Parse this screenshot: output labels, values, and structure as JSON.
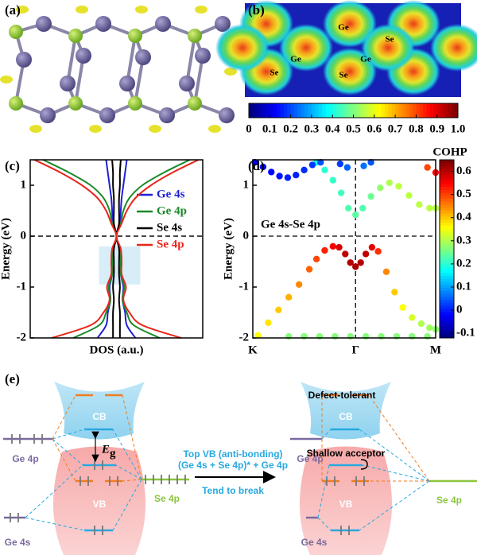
{
  "panel_labels": [
    "(a)",
    "(b)",
    "(c)",
    "(d)",
    "(e)"
  ],
  "panel_b": {
    "atom_labels": [
      "Se",
      "Ge",
      "Ge",
      "Ge",
      "Se",
      "Se"
    ],
    "colorbar": {
      "lim": [
        0,
        1
      ],
      "ticks": [
        0,
        0.1,
        0.2,
        0.3,
        0.4,
        0.5,
        0.6,
        0.7,
        0.8,
        0.9,
        {
          "value": 1,
          "label": "1.0"
        }
      ]
    }
  },
  "chart_data": [
    {
      "type": "dos",
      "xlabel": "DOS (a.u.)",
      "ylabel": "Energy (eV)",
      "ylim": [
        -2,
        1.5
      ],
      "yticks": [
        -2,
        -1,
        0,
        1
      ],
      "xlim": [
        0,
        1
      ],
      "hline": 0,
      "shade": [
        -0.95,
        -0.2
      ],
      "y": [
        -2,
        -1.75,
        -1.5,
        -1.25,
        -1,
        -0.75,
        -0.5,
        -0.25,
        0,
        0.25,
        0.5,
        0.75,
        1,
        1.25,
        1.5
      ],
      "series": [
        {
          "name": "Ge 4s",
          "color": "#1f1fd6",
          "values": [
            0.22,
            0.12,
            0.1,
            0.07,
            0.08,
            0.05,
            0.05,
            0.04,
            0.0,
            0.04,
            0.05,
            0.06,
            0.08,
            0.1,
            0.12
          ]
        },
        {
          "name": "Ge 4p",
          "color": "#1a8a2a",
          "values": [
            0.5,
            0.2,
            0.12,
            0.07,
            0.09,
            0.05,
            0.05,
            0.04,
            0.0,
            0.05,
            0.08,
            0.15,
            0.3,
            0.55,
            0.85
          ]
        },
        {
          "name": "Se 4s",
          "color": "#000000",
          "values": [
            0.04,
            0.04,
            0.04,
            0.03,
            0.04,
            0.03,
            0.03,
            0.03,
            0.0,
            0.03,
            0.03,
            0.03,
            0.04,
            0.04,
            0.05
          ]
        },
        {
          "name": "Se 4p",
          "color": "#e8261a",
          "values": [
            0.75,
            0.3,
            0.15,
            0.08,
            0.11,
            0.06,
            0.06,
            0.05,
            0.0,
            0.06,
            0.12,
            0.22,
            0.4,
            0.65,
            0.95
          ]
        }
      ]
    },
    {
      "type": "bands",
      "ylabel": "Energy (eV)",
      "annotation": "Ge 4s-Se 4p",
      "ylim": [
        -2,
        1.5
      ],
      "yticks": [
        -2,
        -1,
        0,
        1
      ],
      "xlim": [
        0,
        1.78
      ],
      "xticks": [
        {
          "value": 0,
          "label": "K"
        },
        {
          "value": 1,
          "label": "Γ"
        },
        {
          "value": 1.78,
          "label": "M"
        }
      ],
      "hline": 0,
      "colorbar": {
        "title": "COHP",
        "lim": [
          -0.12,
          0.65
        ],
        "ticks": [
          -0.1,
          0,
          0.1,
          0.2,
          0.3,
          0.4,
          0.5,
          0.6
        ]
      },
      "series": [
        {
          "x": [
            0.05,
            0.15,
            0.25,
            0.35,
            0.45,
            0.55,
            0.62,
            0.7,
            0.78,
            0.84,
            0.9,
            0.95,
            1.0,
            1.05,
            1.1,
            1.16,
            1.22,
            1.3,
            1.38,
            1.46,
            1.55,
            1.64,
            1.72,
            1.78
          ],
          "y": [
            -1.95,
            -1.7,
            -1.45,
            -1.2,
            -0.95,
            -0.65,
            -0.45,
            -0.28,
            -0.2,
            -0.22,
            -0.35,
            -0.52,
            -0.6,
            -0.52,
            -0.35,
            -0.22,
            -0.3,
            -0.7,
            -1.1,
            -1.4,
            -1.6,
            -1.72,
            -1.8,
            -1.83
          ],
          "cohp": [
            0.36,
            0.38,
            0.4,
            0.42,
            0.45,
            0.48,
            0.5,
            0.53,
            0.56,
            0.58,
            0.6,
            0.61,
            0.62,
            0.61,
            0.6,
            0.57,
            0.52,
            0.45,
            0.4,
            0.36,
            0.33,
            0.3,
            0.29,
            0.28
          ]
        },
        {
          "x": [
            0.62,
            0.7,
            0.78,
            0.86,
            0.93,
            1.0,
            1.07,
            1.15,
            1.24,
            1.33,
            1.42,
            1.52,
            1.62,
            1.72,
            1.78
          ],
          "y": [
            1.45,
            1.3,
            1.1,
            0.85,
            0.55,
            0.42,
            0.55,
            0.78,
            0.95,
            1.05,
            0.98,
            0.8,
            0.62,
            0.55,
            0.55
          ],
          "cohp": [
            0.18,
            0.2,
            0.21,
            0.22,
            0.23,
            0.24,
            0.23,
            0.25,
            0.28,
            0.3,
            0.31,
            0.31,
            0.31,
            0.31,
            0.31
          ]
        },
        {
          "x": [
            0.02,
            0.1,
            0.18,
            0.26,
            0.34,
            0.42,
            0.5,
            0.58,
            0.66,
            0.85,
            0.92,
            1.08,
            1.15
          ],
          "y": [
            1.45,
            1.36,
            1.26,
            1.18,
            1.15,
            1.2,
            1.3,
            1.4,
            1.45,
            1.42,
            1.35,
            1.38,
            1.45
          ],
          "cohp": [
            -0.03,
            -0.02,
            -0.02,
            -0.01,
            0.0,
            0.0,
            0.01,
            0.02,
            0.04,
            0.02,
            0.05,
            0.06,
            0.04
          ]
        },
        {
          "x": [
            0.35,
            0.5,
            0.65,
            0.8,
            0.95,
            1.1,
            1.25,
            1.4,
            1.55,
            1.7
          ],
          "y": [
            -1.97,
            -1.97,
            -1.97,
            -1.97,
            -1.97,
            -1.97,
            -1.97,
            -1.97,
            -1.97,
            -1.97
          ],
          "cohp": [
            0.27,
            0.27,
            0.27,
            0.27,
            0.27,
            0.27,
            0.27,
            0.27,
            0.27,
            0.27
          ]
        },
        {
          "x": [
            1.7,
            1.78
          ],
          "y": [
            1.35,
            1.25
          ],
          "cohp": [
            0.5,
            0.55
          ]
        }
      ]
    }
  ],
  "diagram": {
    "left": {
      "cb": "CB",
      "vb": "VB",
      "ge4p": "Ge 4p",
      "se4p": "Se 4p",
      "ge4s": "Ge 4s",
      "eg": "E",
      "eg_sub": "g"
    },
    "middle": {
      "line1": "Top VB (anti-bonding)",
      "line2": "(Ge 4s + Se 4p)* + Ge 4p",
      "line3": "Tend to break"
    },
    "right": {
      "title": "Defect-tolerant",
      "cb": "CB",
      "vb": "VB",
      "ge4p": "Ge 4p",
      "se4p": "Se 4p",
      "ge4s": "Ge 4s",
      "acceptor": "Shallow acceptor"
    }
  }
}
